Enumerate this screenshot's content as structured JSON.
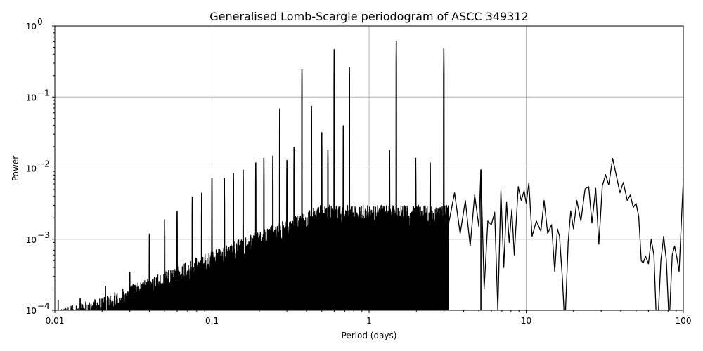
{
  "chart_data": {
    "type": "line",
    "title": "Generalised Lomb-Scargle periodogram of ASCC 349312",
    "xlabel": "Period (days)",
    "ylabel": "Power",
    "xscale": "log",
    "yscale": "log",
    "xlim": [
      0.01,
      100
    ],
    "ylim": [
      0.0001,
      1
    ],
    "grid": true,
    "legend": null,
    "x_ticks": [
      {
        "value": 0.01,
        "label": "0.01"
      },
      {
        "value": 0.1,
        "label": "0.1"
      },
      {
        "value": 1,
        "label": "1"
      },
      {
        "value": 10,
        "label": "10"
      },
      {
        "value": 100,
        "label": "100"
      }
    ],
    "y_ticks": [
      {
        "value": 1,
        "base": "10",
        "exp": "0"
      },
      {
        "value": 0.1,
        "base": "10",
        "exp": "−1"
      },
      {
        "value": 0.01,
        "base": "10",
        "exp": "−2"
      },
      {
        "value": 0.001,
        "base": "10",
        "exp": "−3"
      },
      {
        "value": 0.0001,
        "base": "10",
        "exp": "−4"
      }
    ],
    "series_color": "#000000",
    "major_peaks": [
      {
        "period": 1.49,
        "power": 0.62
      },
      {
        "period": 0.6,
        "power": 0.47
      },
      {
        "period": 2.99,
        "power": 0.48
      },
      {
        "period": 0.75,
        "power": 0.26
      },
      {
        "period": 0.374,
        "power": 0.245
      },
      {
        "period": 0.43,
        "power": 0.075
      },
      {
        "period": 0.27,
        "power": 0.069
      },
      {
        "period": 0.5,
        "power": 0.032
      },
      {
        "period": 0.547,
        "power": 0.018
      },
      {
        "period": 0.686,
        "power": 0.04
      },
      {
        "period": 1.35,
        "power": 0.018
      },
      {
        "period": 1.98,
        "power": 0.014
      },
      {
        "period": 2.45,
        "power": 0.012
      },
      {
        "period": 5.15,
        "power": 0.0095
      },
      {
        "period": 0.333,
        "power": 0.02
      },
      {
        "period": 0.3,
        "power": 0.013
      },
      {
        "period": 0.244,
        "power": 0.015
      },
      {
        "period": 0.214,
        "power": 0.014
      },
      {
        "period": 0.19,
        "power": 0.012
      },
      {
        "period": 0.158,
        "power": 0.0095
      },
      {
        "period": 0.137,
        "power": 0.0085
      },
      {
        "period": 0.12,
        "power": 0.0072
      },
      {
        "period": 0.1,
        "power": 0.0073
      },
      {
        "period": 0.086,
        "power": 0.0045
      },
      {
        "period": 0.075,
        "power": 0.004
      },
      {
        "period": 0.06,
        "power": 0.0025
      },
      {
        "period": 0.05,
        "power": 0.0019
      },
      {
        "period": 0.04,
        "power": 0.0012
      },
      {
        "period": 0.03,
        "power": 0.00035
      },
      {
        "period": 0.021,
        "power": 0.00022
      },
      {
        "period": 0.0145,
        "power": 0.00015
      },
      {
        "period": 0.0105,
        "power": 0.00014
      }
    ],
    "long_period_curve": [
      {
        "period": 3.2,
        "power": 0.0016
      },
      {
        "period": 3.5,
        "power": 0.0045
      },
      {
        "period": 3.8,
        "power": 0.0012
      },
      {
        "period": 4.1,
        "power": 0.0035
      },
      {
        "period": 4.4,
        "power": 0.0008
      },
      {
        "period": 4.7,
        "power": 0.0042
      },
      {
        "period": 5.0,
        "power": 0.0015
      },
      {
        "period": 5.15,
        "power": 0.0095
      },
      {
        "period": 5.4,
        "power": 0.0002
      },
      {
        "period": 5.7,
        "power": 0.0018
      },
      {
        "period": 6.0,
        "power": 0.0016
      },
      {
        "period": 6.3,
        "power": 0.0024
      },
      {
        "period": 6.6,
        "power": 0.0001
      },
      {
        "period": 6.9,
        "power": 0.0048
      },
      {
        "period": 7.2,
        "power": 0.0004
      },
      {
        "period": 7.5,
        "power": 0.0033
      },
      {
        "period": 7.8,
        "power": 0.0009
      },
      {
        "period": 8.1,
        "power": 0.0026
      },
      {
        "period": 8.4,
        "power": 0.0006
      },
      {
        "period": 8.9,
        "power": 0.0055
      },
      {
        "period": 9.3,
        "power": 0.0035
      },
      {
        "period": 9.7,
        "power": 0.0048
      },
      {
        "period": 10.0,
        "power": 0.0032
      },
      {
        "period": 10.4,
        "power": 0.0062
      },
      {
        "period": 10.9,
        "power": 0.0011
      },
      {
        "period": 11.6,
        "power": 0.0018
      },
      {
        "period": 12.4,
        "power": 0.0013
      },
      {
        "period": 13.0,
        "power": 0.0035
      },
      {
        "period": 13.7,
        "power": 0.0012
      },
      {
        "period": 14.5,
        "power": 0.0016
      },
      {
        "period": 15.2,
        "power": 0.00035
      },
      {
        "period": 15.8,
        "power": 0.0014
      },
      {
        "period": 16.3,
        "power": 0.0011
      },
      {
        "period": 17.0,
        "power": 0.00028
      },
      {
        "period": 17.4,
        "power": 0.0001
      },
      {
        "period": 17.8,
        "power": 0.0001
      },
      {
        "period": 18.5,
        "power": 0.0009
      },
      {
        "period": 19.2,
        "power": 0.0025
      },
      {
        "period": 20.0,
        "power": 0.0014
      },
      {
        "period": 21.0,
        "power": 0.0035
      },
      {
        "period": 22.3,
        "power": 0.0018
      },
      {
        "period": 23.7,
        "power": 0.0051
      },
      {
        "period": 25.0,
        "power": 0.0055
      },
      {
        "period": 26.2,
        "power": 0.0017
      },
      {
        "period": 27.7,
        "power": 0.0052
      },
      {
        "period": 29.0,
        "power": 0.00085
      },
      {
        "period": 30.5,
        "power": 0.0056
      },
      {
        "period": 32.0,
        "power": 0.0081
      },
      {
        "period": 33.5,
        "power": 0.0058
      },
      {
        "period": 35.5,
        "power": 0.0137
      },
      {
        "period": 37.5,
        "power": 0.0078
      },
      {
        "period": 39.5,
        "power": 0.0045
      },
      {
        "period": 41.5,
        "power": 0.0063
      },
      {
        "period": 44.0,
        "power": 0.0035
      },
      {
        "period": 46.0,
        "power": 0.0042
      },
      {
        "period": 48.0,
        "power": 0.0028
      },
      {
        "period": 50.0,
        "power": 0.0032
      },
      {
        "period": 52.0,
        "power": 0.0021
      },
      {
        "period": 54.0,
        "power": 0.0005
      },
      {
        "period": 55.5,
        "power": 0.00046
      },
      {
        "period": 57.5,
        "power": 0.00058
      },
      {
        "period": 60.0,
        "power": 0.00045
      },
      {
        "period": 62.5,
        "power": 0.001
      },
      {
        "period": 65.0,
        "power": 0.0006
      },
      {
        "period": 67.0,
        "power": 0.0001
      },
      {
        "period": 69.5,
        "power": 0.0001
      },
      {
        "period": 72.0,
        "power": 0.0005
      },
      {
        "period": 75.0,
        "power": 0.0011
      },
      {
        "period": 78.0,
        "power": 0.0005
      },
      {
        "period": 80.5,
        "power": 0.0001
      },
      {
        "period": 82.0,
        "power": 0.0001
      },
      {
        "period": 85.0,
        "power": 0.0006
      },
      {
        "period": 88.0,
        "power": 0.0008
      },
      {
        "period": 91.0,
        "power": 0.00055
      },
      {
        "period": 94.0,
        "power": 0.00035
      },
      {
        "period": 97.0,
        "power": 0.0016
      },
      {
        "period": 100.0,
        "power": 0.007
      }
    ]
  }
}
